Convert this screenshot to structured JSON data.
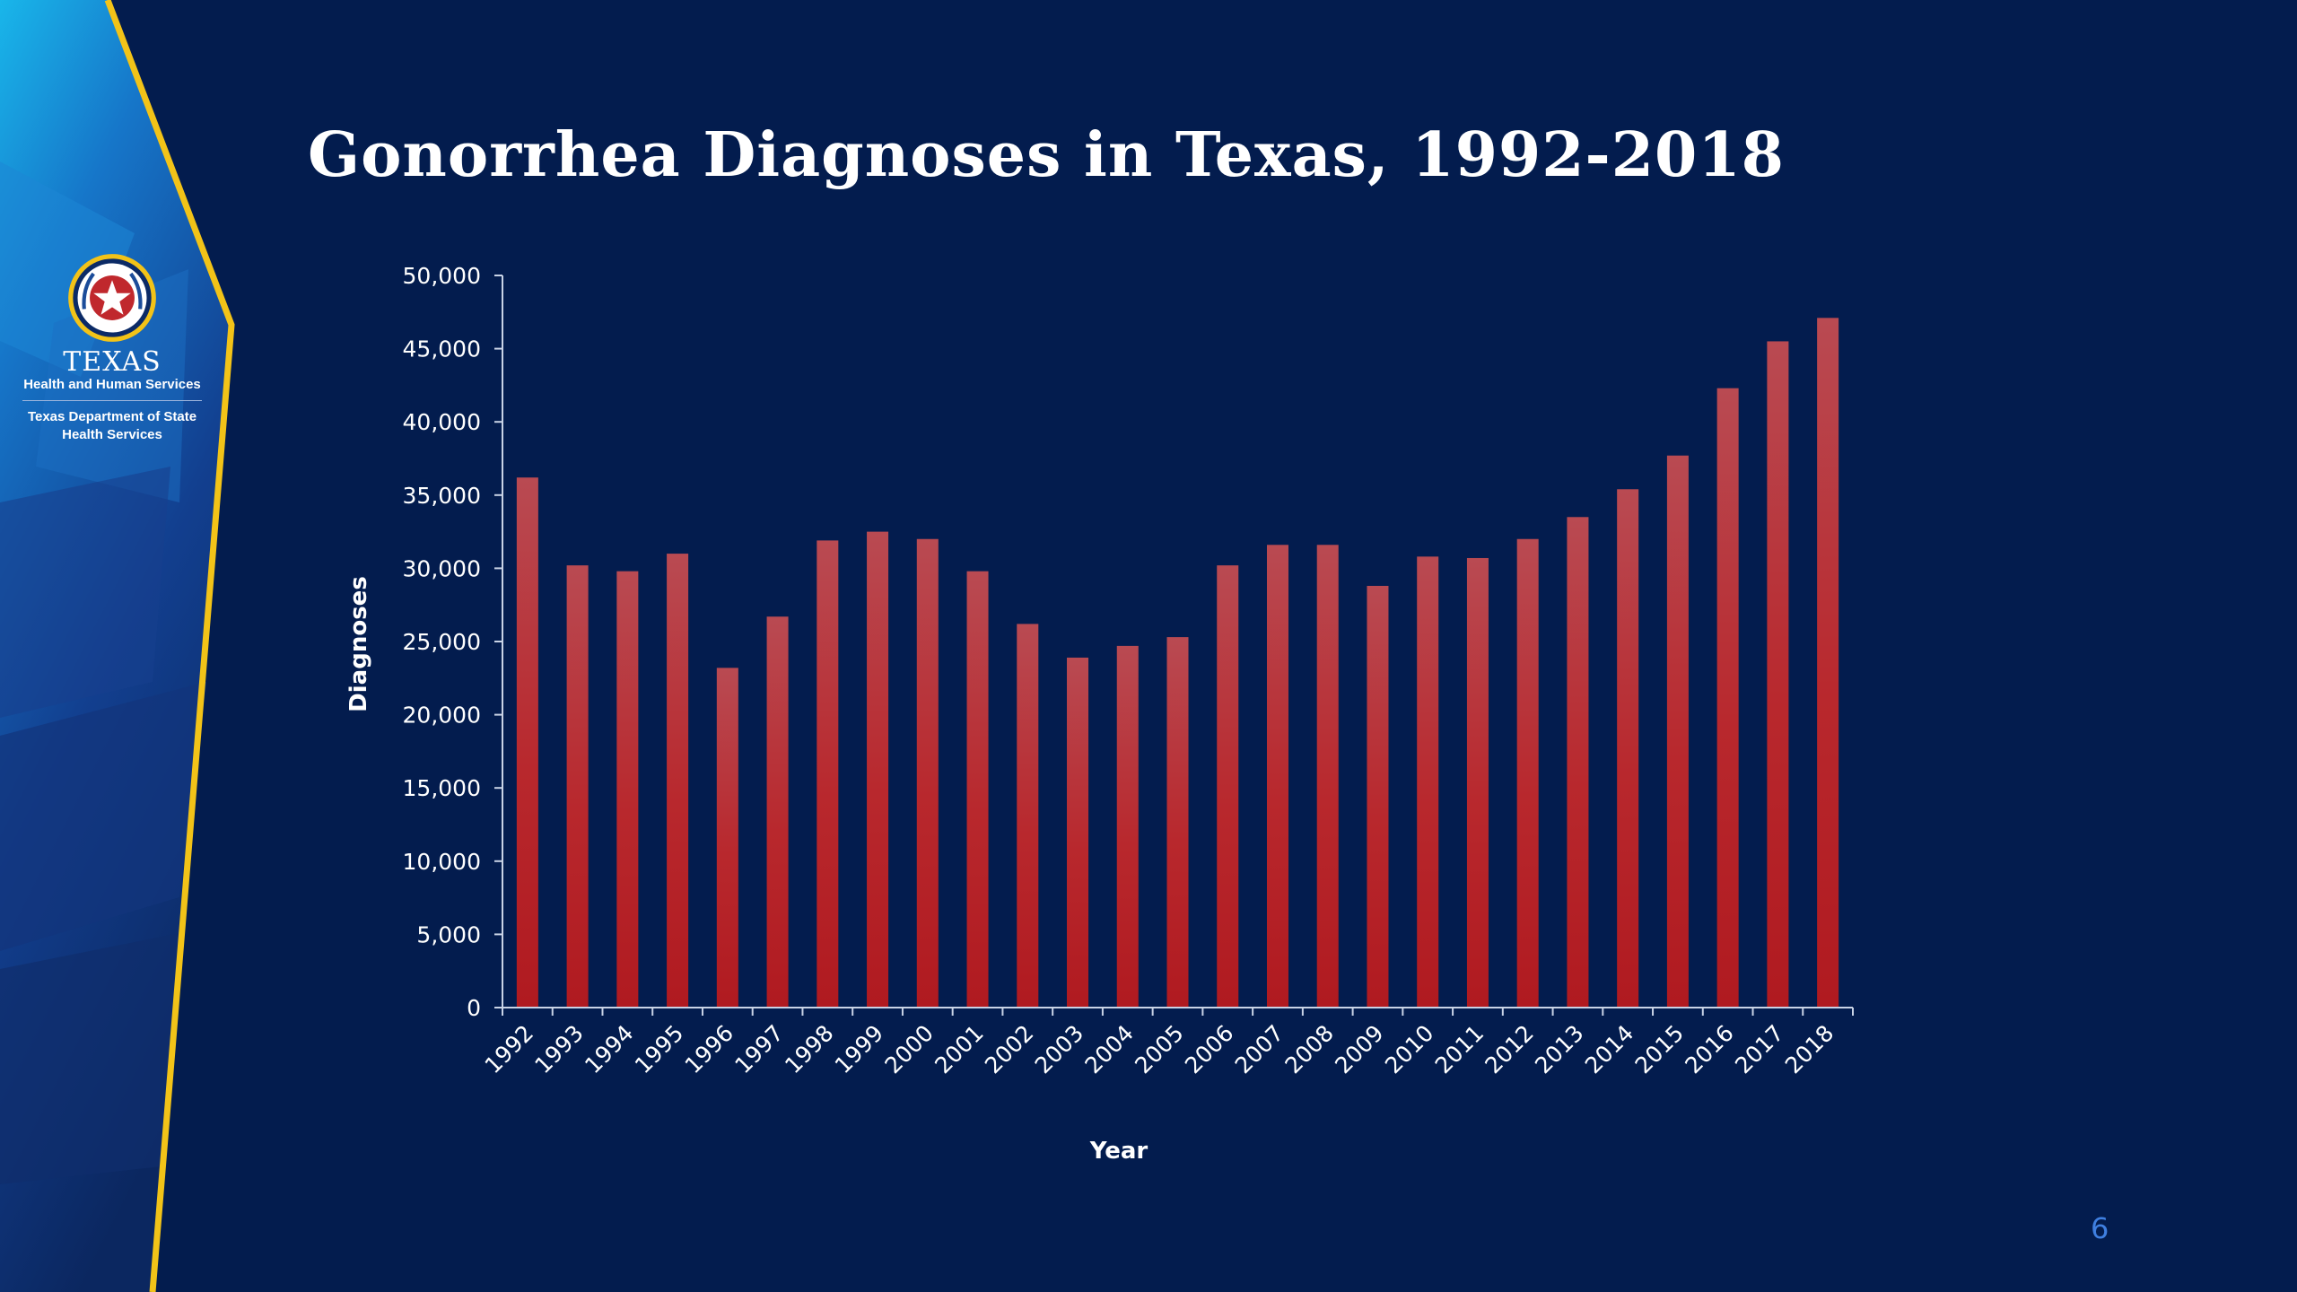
{
  "slide": {
    "title": "Gonorrhea Diagnoses in Texas, 1992-2018",
    "page_number": "6",
    "colors": {
      "background": "#031c4e",
      "bar": "#c0282d",
      "accent_stripe": "#f2c318",
      "axis": "#c9d3e6"
    }
  },
  "logo": {
    "state_name": "TEXAS",
    "agency": "Health and Human Services",
    "department_line1": "Texas Department of State",
    "department_line2": "Health Services",
    "seal_icon": "texas-star-seal-icon"
  },
  "chart_data": {
    "type": "bar",
    "xlabel": "Year",
    "ylabel": "Diagnoses",
    "ylim": [
      0,
      50000
    ],
    "yticks": [
      0,
      5000,
      10000,
      15000,
      20000,
      25000,
      30000,
      35000,
      40000,
      45000,
      50000
    ],
    "ytick_labels": [
      "0",
      "5,000",
      "10,000",
      "15,000",
      "20,000",
      "25,000",
      "30,000",
      "35,000",
      "40,000",
      "45,000",
      "50,000"
    ],
    "grid": false,
    "legend": "none",
    "categories": [
      "1992",
      "1993",
      "1994",
      "1995",
      "1996",
      "1997",
      "1998",
      "1999",
      "2000",
      "2001",
      "2002",
      "2003",
      "2004",
      "2005",
      "2006",
      "2007",
      "2008",
      "2009",
      "2010",
      "2011",
      "2012",
      "2013",
      "2014",
      "2015",
      "2016",
      "2017",
      "2018"
    ],
    "values": [
      36200,
      30200,
      29800,
      31000,
      23200,
      26700,
      31900,
      32500,
      32000,
      29800,
      26200,
      23900,
      24700,
      25300,
      30200,
      31600,
      31600,
      28800,
      30800,
      30700,
      32000,
      33500,
      35400,
      37700,
      42300,
      45500,
      47100
    ]
  }
}
